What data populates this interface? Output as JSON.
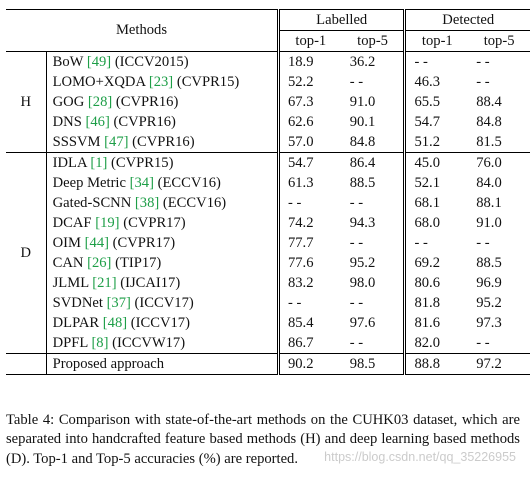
{
  "table": {
    "methods_header": "Methods",
    "labelled_header": "Labelled",
    "detected_header": "Detected",
    "top1": "top-1",
    "top5": "top-5",
    "groups": [
      {
        "label": "H",
        "rows": [
          {
            "name": "BoW",
            "ref": "[49]",
            "venue": "(ICCV2015)",
            "vals": [
              "18.9",
              "36.2",
              "- -",
              "- -"
            ]
          },
          {
            "name": "LOMO+XQDA",
            "ref": "[23]",
            "venue": "(CVPR15)",
            "vals": [
              "52.2",
              "- -",
              "46.3",
              "- -"
            ]
          },
          {
            "name": "GOG",
            "ref": "[28]",
            "venue": "(CVPR16)",
            "vals": [
              "67.3",
              "91.0",
              "65.5",
              "88.4"
            ]
          },
          {
            "name": "DNS",
            "ref": "[46]",
            "venue": "(CVPR16)",
            "vals": [
              "62.6",
              "90.1",
              "54.7",
              "84.8"
            ]
          },
          {
            "name": "SSSVM",
            "ref": "[47]",
            "venue": "(CVPR16)",
            "vals": [
              "57.0",
              "84.8",
              "51.2",
              "81.5"
            ]
          }
        ]
      },
      {
        "label": "D",
        "rows": [
          {
            "name": "IDLA",
            "ref": "[1]",
            "venue": "(CVPR15)",
            "vals": [
              "54.7",
              "86.4",
              "45.0",
              "76.0"
            ]
          },
          {
            "name": "Deep Metric",
            "ref": "[34]",
            "venue": "(ECCV16)",
            "vals": [
              "61.3",
              "88.5",
              "52.1",
              "84.0"
            ]
          },
          {
            "name": "Gated-SCNN",
            "ref": "[38]",
            "venue": "(ECCV16)",
            "vals": [
              "- -",
              "- -",
              "68.1",
              "88.1"
            ]
          },
          {
            "name": "DCAF",
            "ref": "[19]",
            "venue": "(CVPR17)",
            "vals": [
              "74.2",
              "94.3",
              "68.0",
              "91.0"
            ]
          },
          {
            "name": "OIM",
            "ref": "[44]",
            "venue": "(CVPR17)",
            "vals": [
              "77.7",
              "- -",
              "- -",
              "- -"
            ]
          },
          {
            "name": "CAN",
            "ref": "[26]",
            "venue": "(TIP17)",
            "vals": [
              "77.6",
              "95.2",
              "69.2",
              "88.5"
            ]
          },
          {
            "name": "JLML",
            "ref": "[21]",
            "venue": "(IJCAI17)",
            "vals": [
              "83.2",
              "98.0",
              "80.6",
              "96.9"
            ]
          },
          {
            "name": "SVDNet",
            "ref": "[37]",
            "venue": "(ICCV17)",
            "vals": [
              "- -",
              "- -",
              "81.8",
              "95.2"
            ]
          },
          {
            "name": "DLPAR",
            "ref": "[48]",
            "venue": "(ICCV17)",
            "vals": [
              "85.4",
              "97.6",
              "81.6",
              "97.3"
            ]
          },
          {
            "name": "DPFL",
            "ref": "[8]",
            "venue": "(ICCVW17)",
            "vals": [
              "86.7",
              "- -",
              "82.0",
              "- -"
            ]
          }
        ]
      }
    ],
    "proposed": {
      "name": "Proposed approach",
      "vals": [
        "90.2",
        "98.5",
        "88.8",
        "97.2"
      ]
    }
  },
  "caption": "Table 4:  Comparison with state-of-the-art methods on the CUHK03 dataset, which are separated into handcrafted feature based methods (H) and deep learning based methods (D). Top-1 and Top-5 accuracies (%) are reported.",
  "watermark": "https://blog.csdn.net/qq_35226955",
  "colors": {
    "citation": "#1d9e47",
    "text": "#111111"
  }
}
